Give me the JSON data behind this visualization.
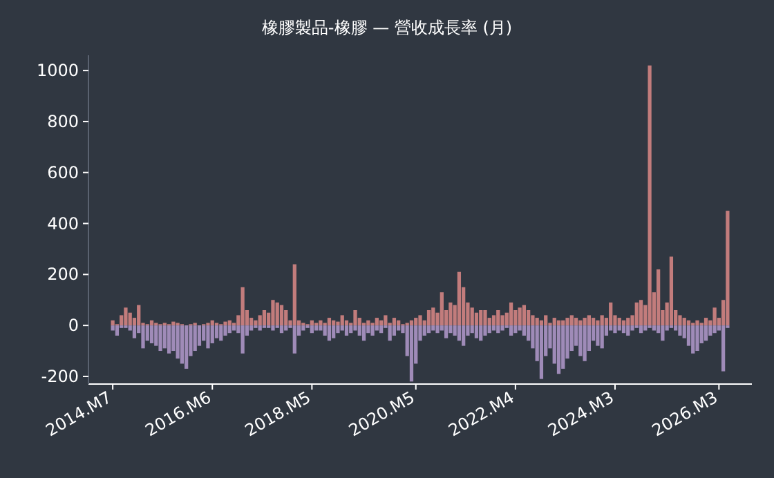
{
  "chart_data": {
    "type": "bar",
    "title": "橡膠製品-橡膠 — 營收成長率 (月)",
    "stacked": true,
    "grid": false,
    "categories": [
      "2014.M7",
      null,
      null,
      null,
      null,
      null,
      null,
      null,
      null,
      null,
      null,
      null,
      null,
      null,
      null,
      null,
      null,
      null,
      null,
      null,
      null,
      null,
      null,
      "2016.M6",
      null,
      null,
      null,
      null,
      null,
      null,
      null,
      null,
      null,
      null,
      null,
      null,
      null,
      null,
      null,
      null,
      null,
      null,
      null,
      null,
      null,
      null,
      "2018.M5",
      null,
      null,
      null,
      null,
      null,
      null,
      null,
      null,
      null,
      null,
      null,
      null,
      null,
      null,
      null,
      null,
      null,
      null,
      null,
      null,
      null,
      null,
      null,
      "2020.M5",
      null,
      null,
      null,
      null,
      null,
      null,
      null,
      null,
      null,
      null,
      null,
      null,
      null,
      null,
      null,
      null,
      null,
      null,
      null,
      null,
      null,
      null,
      "2022.M4",
      null,
      null,
      null,
      null,
      null,
      null,
      null,
      null,
      null,
      null,
      null,
      null,
      null,
      null,
      null,
      null,
      null,
      null,
      null,
      null,
      null,
      null,
      "2024.M3",
      null,
      null,
      null,
      null,
      null,
      null,
      null,
      null,
      null,
      null,
      null,
      null,
      null,
      null,
      null,
      null,
      null,
      null,
      null,
      null,
      null,
      null,
      null,
      "2026.M3",
      null,
      null
    ],
    "ylim": [
      -230,
      1060
    ],
    "yticks": [
      -200,
      0,
      200,
      400,
      600,
      800,
      1000
    ],
    "series": [
      {
        "color": "#c27c7c",
        "values": [
          20,
          5,
          40,
          70,
          50,
          30,
          80,
          10,
          5,
          20,
          10,
          5,
          10,
          5,
          15,
          10,
          5,
          0,
          5,
          10,
          0,
          5,
          10,
          20,
          10,
          5,
          15,
          20,
          10,
          40,
          150,
          60,
          30,
          20,
          40,
          60,
          50,
          100,
          90,
          80,
          60,
          20,
          240,
          20,
          10,
          5,
          20,
          10,
          20,
          10,
          30,
          20,
          15,
          40,
          20,
          10,
          60,
          30,
          10,
          20,
          10,
          30,
          20,
          40,
          10,
          30,
          20,
          5,
          10,
          20,
          30,
          40,
          20,
          60,
          70,
          50,
          130,
          60,
          90,
          80,
          210,
          150,
          90,
          70,
          50,
          60,
          60,
          30,
          40,
          60,
          40,
          50,
          90,
          60,
          70,
          80,
          60,
          40,
          30,
          20,
          40,
          10,
          30,
          20,
          20,
          30,
          40,
          30,
          20,
          30,
          40,
          30,
          20,
          40,
          30,
          90,
          40,
          30,
          20,
          30,
          40,
          90,
          100,
          80,
          1020,
          130,
          220,
          60,
          90,
          270,
          60,
          40,
          30,
          20,
          10,
          20,
          10,
          30,
          20,
          70,
          30,
          100,
          450
        ]
      },
      {
        "color": "#9f8bb8",
        "values": [
          -20,
          -40,
          -10,
          -10,
          -20,
          -50,
          -30,
          -90,
          -60,
          -70,
          -80,
          -100,
          -90,
          -110,
          -100,
          -130,
          -150,
          -170,
          -120,
          -100,
          -80,
          -60,
          -90,
          -70,
          -50,
          -60,
          -40,
          -30,
          -20,
          -30,
          -110,
          -40,
          -20,
          -10,
          -20,
          -10,
          -10,
          -20,
          -10,
          -30,
          -20,
          -10,
          -110,
          -40,
          -20,
          -10,
          -30,
          -20,
          -20,
          -40,
          -60,
          -50,
          -30,
          -20,
          -40,
          -30,
          -20,
          -40,
          -60,
          -30,
          -40,
          -20,
          -30,
          -10,
          -60,
          -40,
          -20,
          -30,
          -120,
          -220,
          -150,
          -60,
          -40,
          -30,
          -20,
          -30,
          -20,
          -50,
          -30,
          -40,
          -60,
          -80,
          -40,
          -30,
          -50,
          -60,
          -40,
          -30,
          -20,
          -30,
          -20,
          -10,
          -40,
          -30,
          -20,
          -40,
          -60,
          -90,
          -140,
          -210,
          -120,
          -90,
          -150,
          -190,
          -170,
          -130,
          -100,
          -80,
          -120,
          -140,
          -100,
          -60,
          -80,
          -90,
          -40,
          -20,
          -30,
          -20,
          -30,
          -40,
          -20,
          -10,
          -30,
          -20,
          -10,
          -20,
          -30,
          -60,
          -20,
          -10,
          -20,
          -40,
          -50,
          -80,
          -110,
          -100,
          -70,
          -60,
          -40,
          -30,
          -20,
          -180,
          -10
        ]
      }
    ]
  }
}
